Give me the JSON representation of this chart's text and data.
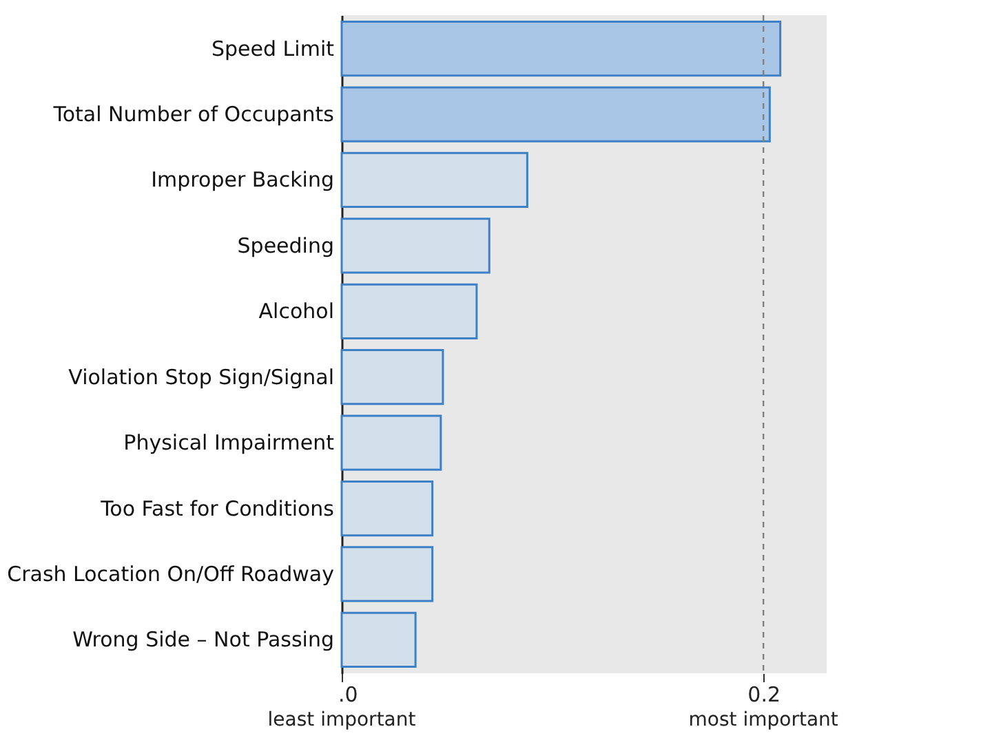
{
  "chart_data": {
    "type": "bar",
    "orientation": "horizontal",
    "categories": [
      "Speed Limit",
      "Total Number of Occupants",
      "Improper Backing",
      "Speeding",
      "Alcohol",
      "Violation  Stop Sign/Signal",
      "Physical Impairment",
      "Too Fast for Conditions",
      "Crash Location On/Off Roadway",
      "Wrong Side – Not Passing"
    ],
    "values": [
      0.208,
      0.203,
      0.088,
      0.07,
      0.064,
      0.048,
      0.047,
      0.043,
      0.043,
      0.035
    ],
    "colors": [
      "#aac6e6",
      "#aac6e6",
      "#d4dfec",
      "#d4dfec",
      "#d4dfec",
      "#d4dfec",
      "#d4dfec",
      "#d4dfec",
      "#d4dfec",
      "#d4dfec"
    ],
    "xlim": [
      0,
      0.23
    ],
    "xticks": [
      {
        "value": 0,
        "label": ".0"
      },
      0.2
    ],
    "annotations": [
      "least important",
      "most important"
    ],
    "ref_lines": [
      {
        "axis": "x",
        "value": 0.2,
        "color": "#808080",
        "line_style": "dashed"
      }
    ],
    "grid": false
  }
}
